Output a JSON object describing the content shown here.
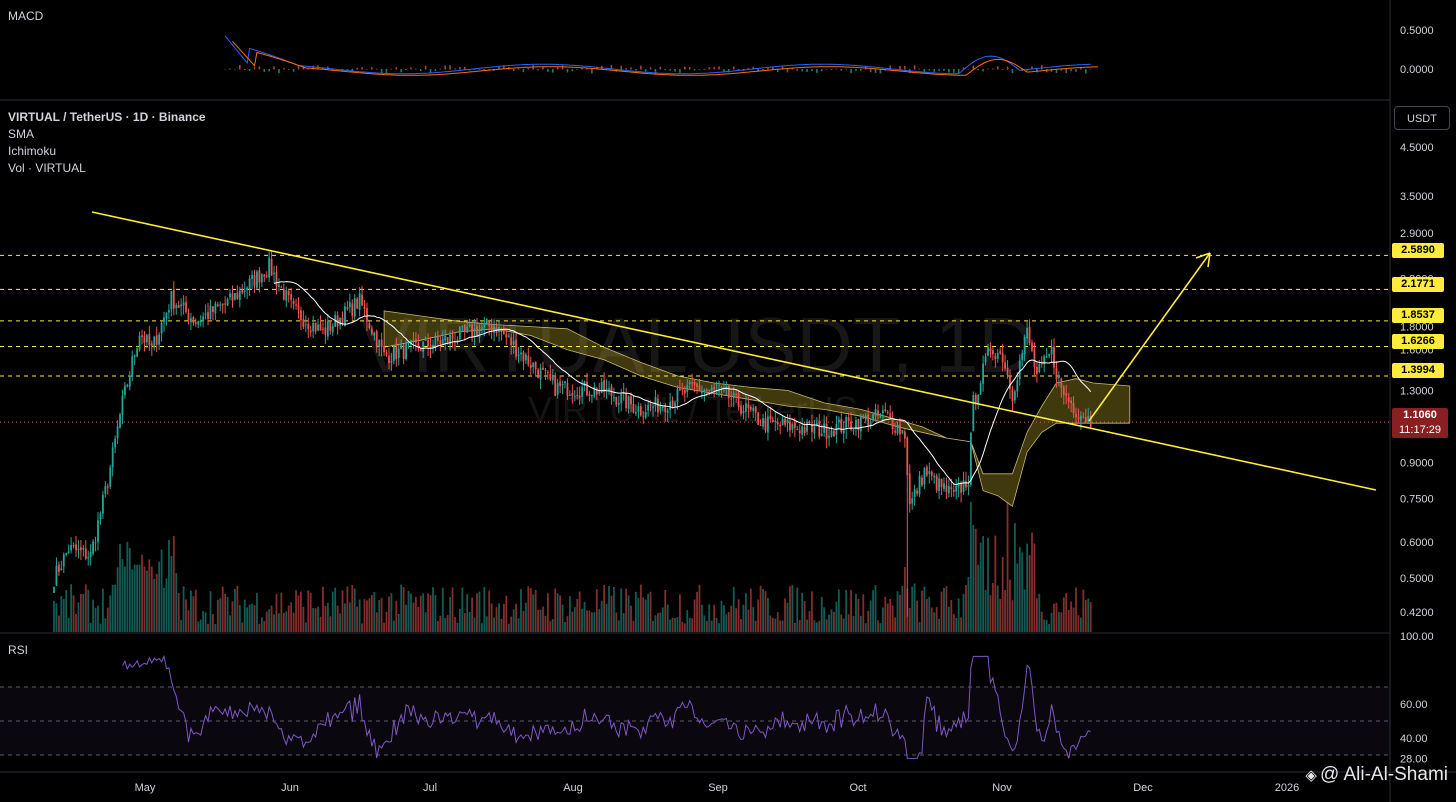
{
  "header": {
    "macd_label": "MACD",
    "rsi_label": "RSI",
    "symbol_title": "VIRTUAL / TetherUS · 1D · Binance",
    "indicators": [
      "SMA",
      "Ichimoku",
      "Vol · VIRTUAL"
    ],
    "currency_button": "USDT",
    "watermark_big": "VIRTUALUSDT, 1D",
    "watermark_small": "VIRTUAL / TetherUS",
    "author": "@ Ali-Al-Shami"
  },
  "chart_data": {
    "type": "candlestick",
    "symbol": "VIRTUAL / TetherUS",
    "timeframe": "1D",
    "exchange": "Binance",
    "y_scale": "log",
    "price_axis_labels": [
      "4.5000",
      "3.5000",
      "2.9000",
      "2.3000",
      "1.8000",
      "1.6000",
      "1.3000",
      "0.9000",
      "0.7500",
      "0.6000",
      "0.5000",
      "0.4200"
    ],
    "macd_axis_labels": [
      "0.5000",
      "0.0000"
    ],
    "rsi_axis_labels": [
      "100.00",
      "60.00",
      "40.00",
      "28.00"
    ],
    "x_tick_labels": [
      "May",
      "Jun",
      "Jul",
      "Aug",
      "Sep",
      "Oct",
      "Nov",
      "Dec",
      "2026"
    ],
    "horizontal_levels": [
      {
        "label": "2.5890",
        "value": 2.589
      },
      {
        "label": "2.1771",
        "value": 2.1771
      },
      {
        "label": "1.8537",
        "value": 1.8537
      },
      {
        "label": "1.6266",
        "value": 1.6266
      },
      {
        "label": "1.3994",
        "value": 1.3994
      }
    ],
    "last_price": {
      "value": "1.1060",
      "countdown": "11:17:29",
      "color": "#8a1f22"
    },
    "level_color": "#ffeb3b",
    "trendline_color": "#ffeb3b",
    "colors": {
      "up": "#26a69a",
      "down": "#ef5350",
      "rsi": "#7e57c2",
      "macd": "#2962ff",
      "signal": "#ff6d00",
      "cloud": "#b7a227"
    }
  }
}
